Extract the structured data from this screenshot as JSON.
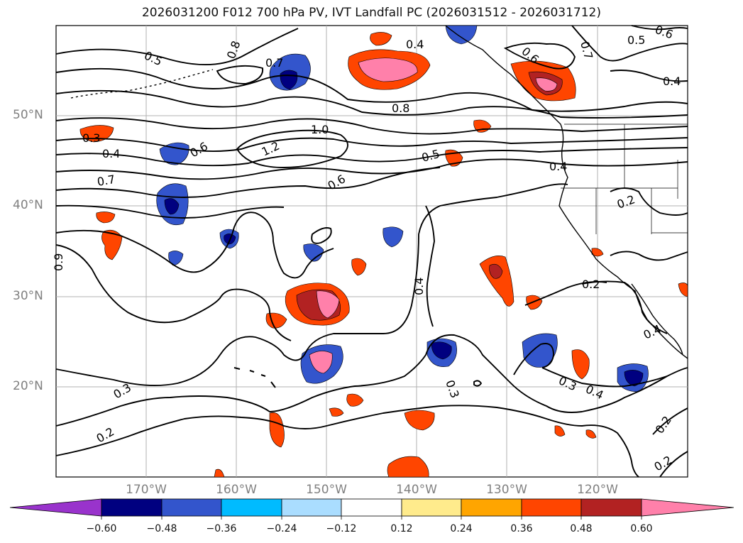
{
  "title": "2026031200 F012 700 hPa PV, IVT Landfall PC (2026031512 - 2026031712)",
  "lat_labels": [
    "50°N",
    "40°N",
    "30°N",
    "20°N"
  ],
  "lon_labels": [
    "170°W",
    "160°W",
    "150°W",
    "140°W",
    "130°W",
    "120°W"
  ],
  "colorbar": {
    "ticks": [
      "−0.60",
      "−0.48",
      "−0.36",
      "−0.24",
      "−0.12",
      "0.12",
      "0.24",
      "0.36",
      "0.48",
      "0.60"
    ],
    "colors": [
      "#9933cc",
      "#000080",
      "#3355cc",
      "#00bbff",
      "#aaddff",
      "#ffffff",
      "#ffeb8c",
      "#ffa500",
      "#ff4500",
      "#b22222",
      "#ff80aa"
    ]
  },
  "contour_labels": [
    "0.5",
    "0.8",
    "0.7",
    "0.4",
    "0.6",
    "0.7",
    "0.5",
    "0.6",
    "0.4",
    "0.3",
    "0.4",
    "0.6",
    "0.8",
    "1.0",
    "1.2",
    "0.5",
    "0.7",
    "0.6",
    "0.4",
    "0.2",
    "0.9",
    "0.4",
    "0.2",
    "0.4",
    "0.3",
    "0.3",
    "0.4",
    "0.3",
    "0.2",
    "0.2",
    "0.2"
  ]
}
